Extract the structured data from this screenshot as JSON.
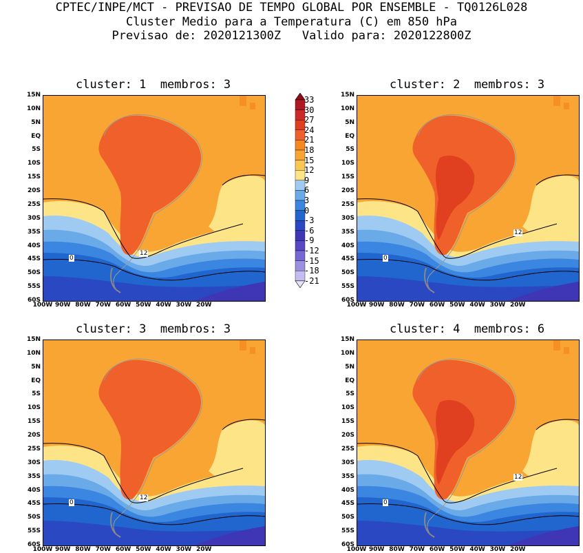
{
  "title": {
    "line1": "CPTEC/INPE/MCT - PREVISAO DE TEMPO GLOBAL POR ENSEMBLE - TQ0126L028",
    "line2": "Cluster Medio para a Temperatura (C) em 850 hPa",
    "line3": "Previsao de: 2020121300Z   Valido para: 2020122800Z"
  },
  "panels": [
    {
      "title": "cluster: 1  membros: 3"
    },
    {
      "title": "cluster: 2  membros: 3"
    },
    {
      "title": "cluster: 3  membros: 3"
    },
    {
      "title": "cluster: 4  membros: 6"
    }
  ],
  "lat_labels": [
    "15N",
    "10N",
    "5N",
    "EQ",
    "5S",
    "10S",
    "15S",
    "20S",
    "25S",
    "30S",
    "35S",
    "40S",
    "45S",
    "50S",
    "55S",
    "60S"
  ],
  "lon_labels": [
    "100W",
    "90W",
    "80W",
    "70W",
    "60W",
    "50W",
    "40W",
    "30W",
    "20W"
  ],
  "contour_labels": {
    "c12": "12",
    "c0": "0"
  },
  "colorbar": {
    "levels": [
      "33",
      "30",
      "27",
      "24",
      "21",
      "18",
      "15",
      "12",
      "9",
      "6",
      "3",
      "0",
      "-3",
      "-6",
      "-9",
      "-12",
      "-15",
      "-18",
      "-21"
    ],
    "colors": [
      "#8c0d1a",
      "#b01826",
      "#cc2a2a",
      "#e0401f",
      "#f0602a",
      "#f5881e",
      "#f8a534",
      "#fbc752",
      "#fde487",
      "#9fcbf2",
      "#6aaae8",
      "#3a86e0",
      "#2166cf",
      "#2a48c2",
      "#3e36b4",
      "#5848c4",
      "#7668d2",
      "#9b90e0",
      "#c4bdf0",
      "#e6e3f8"
    ]
  }
}
